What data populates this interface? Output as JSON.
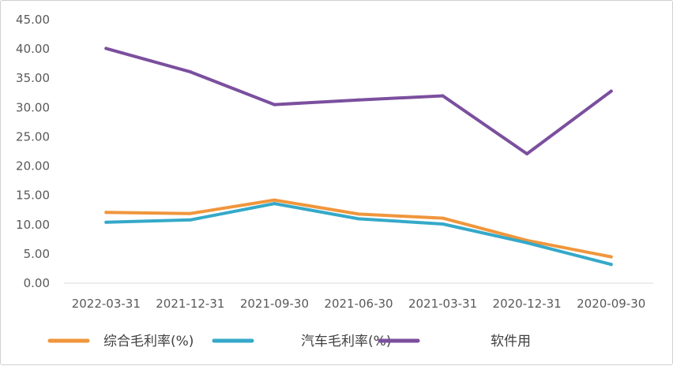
{
  "chart_data": {
    "type": "line",
    "title": "",
    "xlabel": "",
    "ylabel": "",
    "categories": [
      "2022-03-31",
      "2021-12-31",
      "2021-09-30",
      "2021-06-30",
      "2021-03-31",
      "2020-12-31",
      "2020-09-30"
    ],
    "ylim": [
      0,
      45
    ],
    "yticks": [
      "0.00",
      "5.00",
      "10.00",
      "15.00",
      "20.00",
      "25.00",
      "30.00",
      "35.00",
      "40.00",
      "45.00"
    ],
    "grid": false,
    "legend_position": "bottom",
    "series": [
      {
        "name": "综合毛利率(%)",
        "color": "#f0963c",
        "values": [
          12.1,
          11.9,
          14.2,
          11.8,
          11.1,
          7.3,
          4.5
        ]
      },
      {
        "name": "汽车毛利率(%)",
        "color": "#35a9c9",
        "values": [
          10.4,
          10.8,
          13.6,
          11.0,
          10.1,
          6.9,
          3.2
        ]
      },
      {
        "name": "软件用",
        "color": "#7b4f9e",
        "values": [
          40.1,
          36.1,
          30.5,
          31.3,
          32.0,
          22.1,
          32.8
        ]
      }
    ]
  }
}
